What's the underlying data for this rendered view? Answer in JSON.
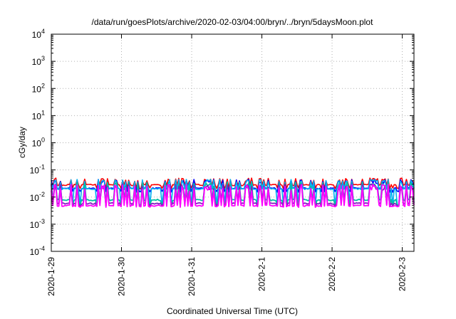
{
  "chart_data": {
    "type": "line",
    "title": "/data/run/goesPlots/archive/2020-02-03/04:00/bryn/../bryn/5daysMoon.plot",
    "xlabel": "Coordinated Universal Time (UTC)",
    "ylabel": "cGy/day",
    "yscale": "log",
    "ylim": [
      0.0001,
      10000
    ],
    "xlim": [
      "2020-01-29T00:00",
      "2020-02-03T04:00"
    ],
    "xtick_labels": [
      "2020-1-29",
      "2020-1-30",
      "2020-1-31",
      "2020-2-1",
      "2020-2-2",
      "2020-2-3"
    ],
    "ytick_labels": [
      {
        "base": "10",
        "exp": "-4"
      },
      {
        "base": "10",
        "exp": "-3"
      },
      {
        "base": "10",
        "exp": "-2"
      },
      {
        "base": "10",
        "exp": "-1"
      },
      {
        "base": "10",
        "exp": "0"
      },
      {
        "base": "10",
        "exp": "1"
      },
      {
        "base": "10",
        "exp": "2"
      },
      {
        "base": "10",
        "exp": "3"
      },
      {
        "base": "10",
        "exp": "4"
      }
    ],
    "grid": true,
    "legend": "none",
    "series": [
      {
        "color": "#ff0000",
        "baseline": 0.028,
        "peak": 0.05,
        "dip": 0.02
      },
      {
        "color": "#0000ff",
        "baseline": 0.021,
        "peak": 0.045,
        "dip": 0.015
      },
      {
        "color": "#00b0f0",
        "baseline": 0.02,
        "peak": 0.045,
        "dip": 0.005
      },
      {
        "color": "#00c0a0",
        "baseline": 0.0078,
        "peak": 0.035,
        "dip": 0.0048
      },
      {
        "color": "#8020c0",
        "baseline": 0.0058,
        "peak": 0.03,
        "dip": 0.0044
      },
      {
        "color": "#ff00ff",
        "baseline": 0.0048,
        "peak": 0.03,
        "dip": 0.0042
      }
    ]
  }
}
